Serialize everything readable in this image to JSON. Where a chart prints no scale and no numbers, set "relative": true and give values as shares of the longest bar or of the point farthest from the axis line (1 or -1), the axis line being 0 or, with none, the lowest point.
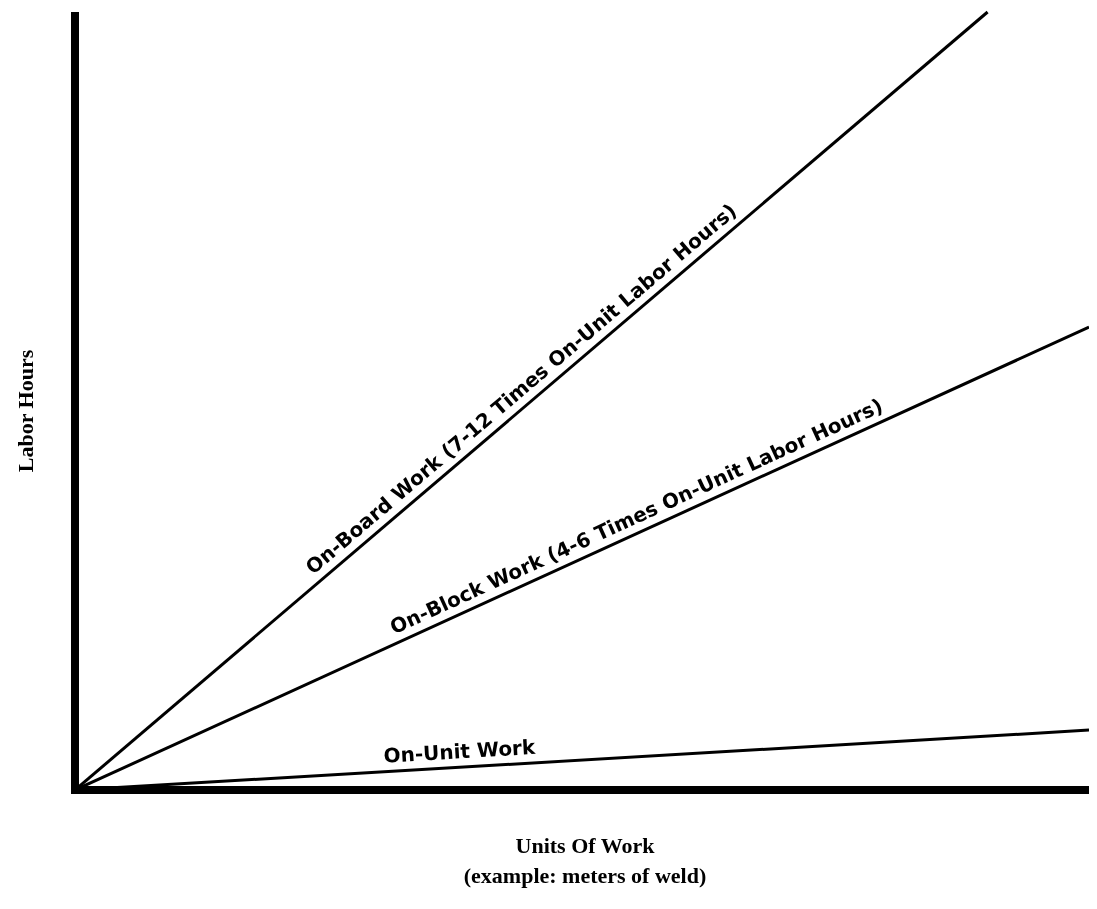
{
  "chart_data": {
    "type": "line",
    "relative": true,
    "xlabel": "Units Of Work\n(example: meters of weld)",
    "ylabel": "Labor Hours",
    "marker": "none",
    "line_style": "solid",
    "categories": [
      null,
      null,
      null,
      null,
      null,
      null,
      null,
      null,
      null,
      null,
      null
    ],
    "series": [
      {
        "name": "On-Board Work (7-12 Times On-Unit Labor Hours)",
        "color": "#000000",
        "values": [
          0,
          null,
          null,
          null,
          null,
          null,
          null,
          null,
          null,
          1,
          null
        ]
      },
      {
        "name": "On-Block Work (4-6 Times On-Unit Labor Hours)",
        "color": "#000000",
        "values": [
          0,
          null,
          null,
          null,
          null,
          null,
          null,
          null,
          null,
          null,
          0.595
        ]
      },
      {
        "name": "On-Unit Work",
        "color": "#000000",
        "values": [
          0,
          null,
          null,
          null,
          null,
          null,
          null,
          null,
          null,
          null,
          0.077
        ]
      }
    ]
  }
}
